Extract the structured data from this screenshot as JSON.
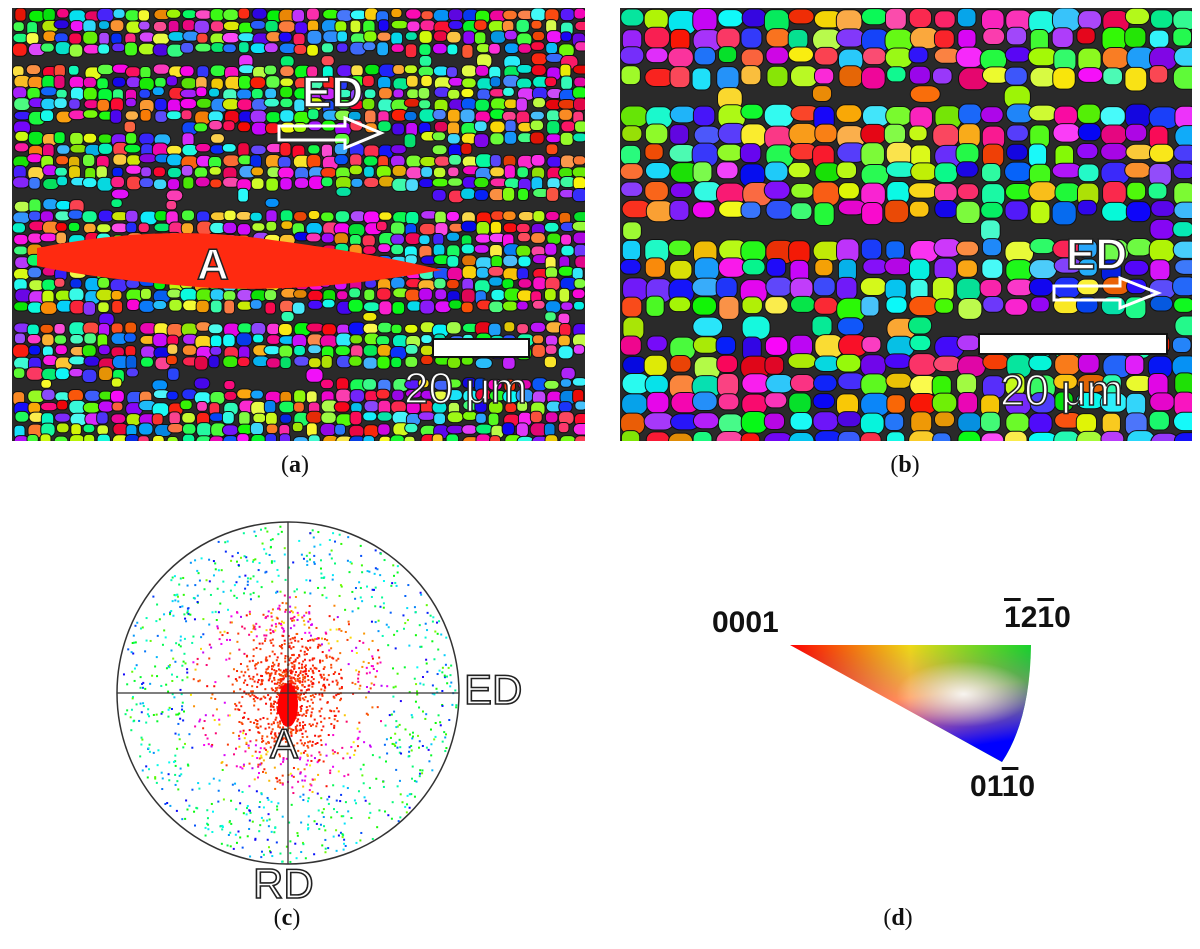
{
  "panel_a": {
    "caption_letter": "a",
    "direction_label": "ED",
    "grain_label": "A",
    "scale_label": "20 μm"
  },
  "panel_b": {
    "caption_letter": "b",
    "direction_label": "ED",
    "scale_label": "20 μm"
  },
  "panel_c": {
    "caption_letter": "c",
    "horizontal_axis_label": "ED",
    "vertical_axis_label": "RD",
    "cluster_label": "A"
  },
  "panel_d": {
    "caption_letter": "d",
    "corner_0001": "0001",
    "corner_1210_digits": [
      "1",
      "2",
      "1",
      "0"
    ],
    "corner_0110_digits": [
      "0",
      "1",
      "1",
      "0"
    ]
  },
  "colors": {
    "grain_boundary": "#111111",
    "dark_band": "#2a2a2a",
    "red_grain": "#ff2a10",
    "ipf_red": "#ff0000",
    "ipf_green": "#00ff00",
    "ipf_blue": "#0000ff"
  }
}
